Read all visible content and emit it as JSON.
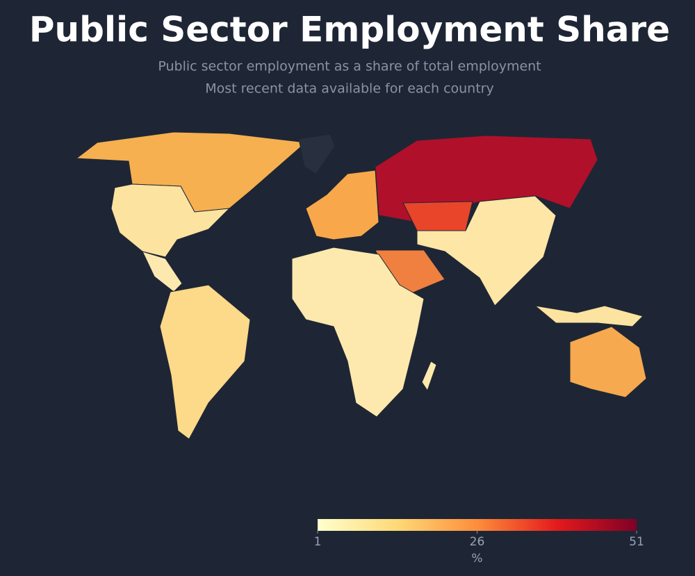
{
  "chart_data": {
    "type": "choropleth",
    "title": "Public Sector Employment Share",
    "subtitle": [
      "Public sector employment as a share of total employment",
      "Most recent data available for each country"
    ],
    "zlim": [
      1,
      51
    ],
    "zticks": [
      1,
      26,
      51
    ],
    "colorbar_title": "%",
    "colorscale": [
      "#ffffcc",
      "#fed976",
      "#fd8d3c",
      "#e31a1c",
      "#800026"
    ]
  }
}
